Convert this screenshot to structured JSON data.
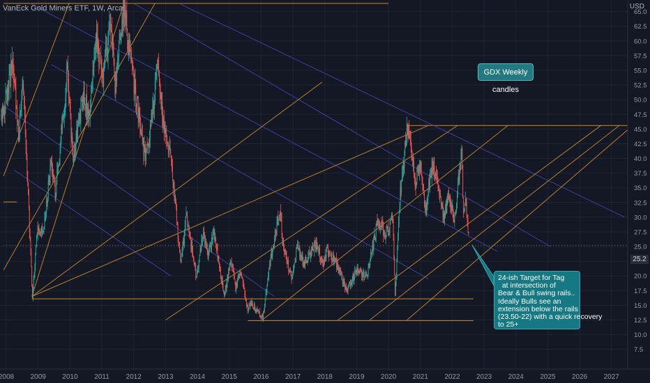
{
  "chart_title": "VanEck Gold Miners ETF, 1W, Arca",
  "currency": "USD",
  "last_price_label": "25.2",
  "notes": {
    "weekly": "GDX Weekly candles",
    "target": "24-ish Target for Tag\n  at intersection of\nBear & Bull swing rails..\nIdeally Bulls see an\nextension below the rails\n(23.50-22) with a quick recovery\nto 25+"
  },
  "colors": {
    "background": "#141824",
    "up_candle": "#26a69a",
    "down_candle": "#ef5350",
    "bull_rail": "#c98a2b",
    "bear_rail": "#3f44a6",
    "grid": "#1f2431",
    "axis_text": "#9598a1"
  },
  "chart_data": {
    "type": "candlestick",
    "title": "VanEck Gold Miners ETF, 1W, Arca",
    "x_axis": {
      "type": "date",
      "range": [
        "2007-12-01",
        "2027-12-31"
      ],
      "ticks": [
        "2008",
        "2009",
        "2010",
        "2011",
        "2012",
        "2013",
        "2014",
        "2015",
        "2016",
        "2017",
        "2018",
        "2019",
        "2020",
        "2021",
        "2022",
        "2023",
        "2024",
        "2025",
        "2026",
        "2027"
      ]
    },
    "y_axis": {
      "position": "right",
      "unit": "USD",
      "range": [
        5.8,
        66.5
      ],
      "ticks": [
        "7.5",
        "10.0",
        "12.5",
        "15.0",
        "17.5",
        "20.0",
        "22.5",
        "25.0",
        "27.5",
        "30.0",
        "32.5",
        "35.0",
        "37.5",
        "40.0",
        "42.5",
        "45.0",
        "47.5",
        "50.0",
        "52.5",
        "55.0",
        "57.5",
        "60.0",
        "62.5",
        "65.0"
      ]
    },
    "price_path": [
      [
        "2007-11-05",
        46
      ],
      [
        "2008-03-15",
        56
      ],
      [
        "2008-05-20",
        44
      ],
      [
        "2008-07-10",
        52
      ],
      [
        "2008-08-20",
        40
      ],
      [
        "2008-10-27",
        16.5
      ],
      [
        "2008-12-20",
        28
      ],
      [
        "2009-03-01",
        27
      ],
      [
        "2009-06-01",
        40
      ],
      [
        "2009-07-15",
        34
      ],
      [
        "2009-12-01",
        55
      ],
      [
        "2010-02-05",
        40
      ],
      [
        "2010-06-01",
        51
      ],
      [
        "2010-08-01",
        47
      ],
      [
        "2010-11-01",
        60
      ],
      [
        "2011-01-15",
        53
      ],
      [
        "2011-04-05",
        64
      ],
      [
        "2011-06-01",
        53
      ],
      [
        "2011-09-10",
        66.2
      ],
      [
        "2011-12-01",
        56
      ],
      [
        "2012-05-15",
        40
      ],
      [
        "2012-07-01",
        44
      ],
      [
        "2012-09-30",
        55
      ],
      [
        "2012-12-01",
        47
      ],
      [
        "2013-03-01",
        40
      ],
      [
        "2013-06-25",
        22
      ],
      [
        "2013-08-25",
        30
      ],
      [
        "2013-12-20",
        20
      ],
      [
        "2014-03-10",
        28
      ],
      [
        "2014-05-01",
        23
      ],
      [
        "2014-07-10",
        27.5
      ],
      [
        "2014-11-05",
        16.5
      ],
      [
        "2015-01-20",
        23
      ],
      [
        "2015-03-15",
        18
      ],
      [
        "2015-05-10",
        21
      ],
      [
        "2015-08-01",
        14
      ],
      [
        "2015-09-01",
        15.5
      ],
      [
        "2016-01-20",
        12.8
      ],
      [
        "2016-04-20",
        23
      ],
      [
        "2016-08-05",
        31.5
      ],
      [
        "2016-09-01",
        26
      ],
      [
        "2016-12-15",
        19.5
      ],
      [
        "2017-02-20",
        25
      ],
      [
        "2017-05-05",
        22
      ],
      [
        "2017-09-10",
        25.5
      ],
      [
        "2017-12-15",
        22
      ],
      [
        "2018-01-25",
        24.5
      ],
      [
        "2018-05-01",
        22.5
      ],
      [
        "2018-09-10",
        17.5
      ],
      [
        "2019-01-01",
        21
      ],
      [
        "2019-05-01",
        20
      ],
      [
        "2019-09-01",
        29.5
      ],
      [
        "2019-12-01",
        27
      ],
      [
        "2020-02-20",
        30
      ],
      [
        "2020-03-16",
        16.3
      ],
      [
        "2020-05-15",
        34
      ],
      [
        "2020-08-05",
        45.4
      ],
      [
        "2020-11-01",
        36
      ],
      [
        "2021-01-05",
        39
      ],
      [
        "2021-03-01",
        31
      ],
      [
        "2021-05-20",
        39.5
      ],
      [
        "2021-09-30",
        29.5
      ],
      [
        "2021-11-15",
        34
      ],
      [
        "2022-01-28",
        29.5
      ],
      [
        "2022-04-18",
        41.4
      ],
      [
        "2022-05-10",
        31
      ],
      [
        "2022-06-01",
        34
      ],
      [
        "2022-07-15",
        25.2
      ]
    ],
    "bull_rails": [
      [
        [
          "2008-10-20",
          16.5
        ],
        [
          "2011-09-10",
          66.4
        ]
      ],
      [
        [
          "2007-12-01",
          21
        ],
        [
          "2012-09-01",
          66.4
        ]
      ],
      [
        [
          "2007-12-01",
          37
        ],
        [
          "2009-12-20",
          66.4
        ]
      ],
      [
        [
          "2008-10-20",
          16.5
        ],
        [
          "2017-12-01",
          53
        ]
      ],
      [
        [
          "2008-10-20",
          16.5
        ],
        [
          "2021-04-01",
          45.6
        ]
      ],
      [
        [
          "2013-01-01",
          12.5
        ],
        [
          "2022-03-01",
          45.6
        ]
      ],
      [
        [
          "2016-01-15",
          12.5
        ],
        [
          "2023-10-01",
          45.6
        ]
      ],
      [
        [
          "2018-06-01",
          12.5
        ],
        [
          "2026-09-01",
          45.6
        ]
      ],
      [
        [
          "2019-06-01",
          12.5
        ],
        [
          "2027-04-01",
          45.6
        ]
      ],
      [
        [
          "2020-08-01",
          12.5
        ],
        [
          "2027-09-01",
          45.6
        ]
      ]
    ],
    "bear_rails": [
      [
        [
          "2008-10-01",
          66.4
        ],
        [
          "2023-06-01",
          24.2
        ]
      ],
      [
        [
          "2012-01-01",
          66.4
        ],
        [
          "2025-02-01",
          25
        ]
      ],
      [
        [
          "2013-06-01",
          66.4
        ],
        [
          "2027-06-01",
          30
        ]
      ],
      [
        [
          "2009-06-01",
          56
        ],
        [
          "2021-04-01",
          19.5
        ]
      ],
      [
        [
          "2007-12-01",
          49
        ],
        [
          "2016-06-01",
          16.5
        ]
      ],
      [
        [
          "2008-04-01",
          38
        ],
        [
          "2013-03-01",
          20
        ]
      ]
    ],
    "horizontal_levels": [
      {
        "y": 66.4,
        "from": "2007-12-01",
        "to": "2020-01-01"
      },
      {
        "y": 45.6,
        "from": "2020-08-01",
        "to": "2027-12-15"
      },
      {
        "y": 16.1,
        "from": "2008-10-20",
        "to": "2022-09-01"
      },
      {
        "y": 12.4,
        "from": "2015-08-01",
        "to": "2022-09-01"
      },
      {
        "y": 32.6,
        "from": "2007-12-01",
        "to": "2008-05-01"
      },
      {
        "y": 25.2,
        "from": "2007-12-01",
        "to": "2027-12-31",
        "style": "dotted"
      }
    ],
    "callout_target": [
      "2022-08-15",
      25.3
    ]
  }
}
